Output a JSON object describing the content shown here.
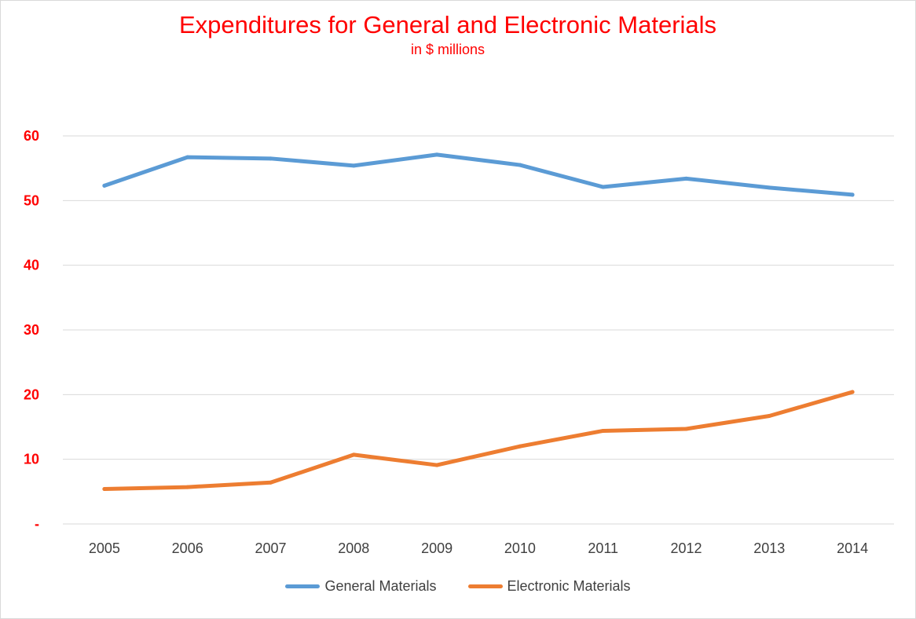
{
  "chart_data": {
    "type": "line",
    "title": "Expenditures for General and Electronic Materials",
    "subtitle": "in $ millions",
    "categories": [
      "2005",
      "2006",
      "2007",
      "2008",
      "2009",
      "2010",
      "2011",
      "2012",
      "2013",
      "2014"
    ],
    "ylim": [
      0,
      60
    ],
    "yticks": [
      0,
      10,
      20,
      30,
      40,
      50,
      60
    ],
    "ytick_labels": [
      "-",
      "10",
      "20",
      "30",
      "40",
      "50",
      "60"
    ],
    "grid": true,
    "legend_position": "bottom",
    "series": [
      {
        "name": "General Materials",
        "color": "#5b9bd5",
        "values": [
          52.3,
          56.7,
          56.5,
          55.4,
          57.1,
          55.5,
          52.1,
          53.4,
          52.0,
          50.9
        ]
      },
      {
        "name": "Electronic Materials",
        "color": "#ed7d31",
        "values": [
          5.4,
          5.7,
          6.4,
          10.7,
          9.1,
          12.0,
          14.4,
          14.7,
          16.7,
          20.4
        ]
      }
    ]
  }
}
